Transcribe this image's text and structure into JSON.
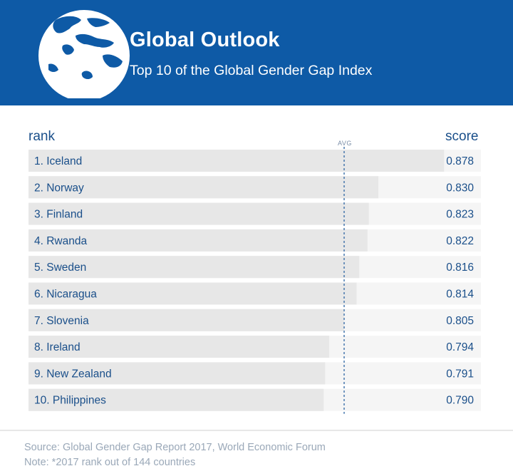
{
  "header": {
    "title": "Global Outlook",
    "subtitle": "Top 10 of the Global Gender Gap Index",
    "background_color": "#0e5aa6",
    "icon": "globe-icon"
  },
  "chart_data": {
    "type": "bar",
    "orientation": "horizontal",
    "rank_header": "rank",
    "score_header": "score",
    "reference_label": "AVG",
    "categories": [
      "1. Iceland",
      "2. Norway",
      "3. Finland",
      "4. Rwanda",
      "5. Sweden",
      "6. Nicaragua",
      "7. Slovenia",
      "8. Ireland",
      "9. New Zealand",
      "10. Philippines"
    ],
    "values": [
      0.878,
      0.83,
      0.823,
      0.822,
      0.816,
      0.814,
      0.805,
      0.794,
      0.791,
      0.79
    ],
    "value_labels": [
      "0.878",
      "0.830",
      "0.823",
      "0.822",
      "0.816",
      "0.814",
      "0.805",
      "0.794",
      "0.791",
      "0.790"
    ],
    "bar_color": "#e7e7e7",
    "label_color": "#1a4f8a",
    "reference_line_color": "#3a6ea8"
  },
  "footer": {
    "source": "Source: Global Gender Gap Report 2017, World Economic Forum",
    "note": "Note: *2017 rank out of 144 countries"
  }
}
